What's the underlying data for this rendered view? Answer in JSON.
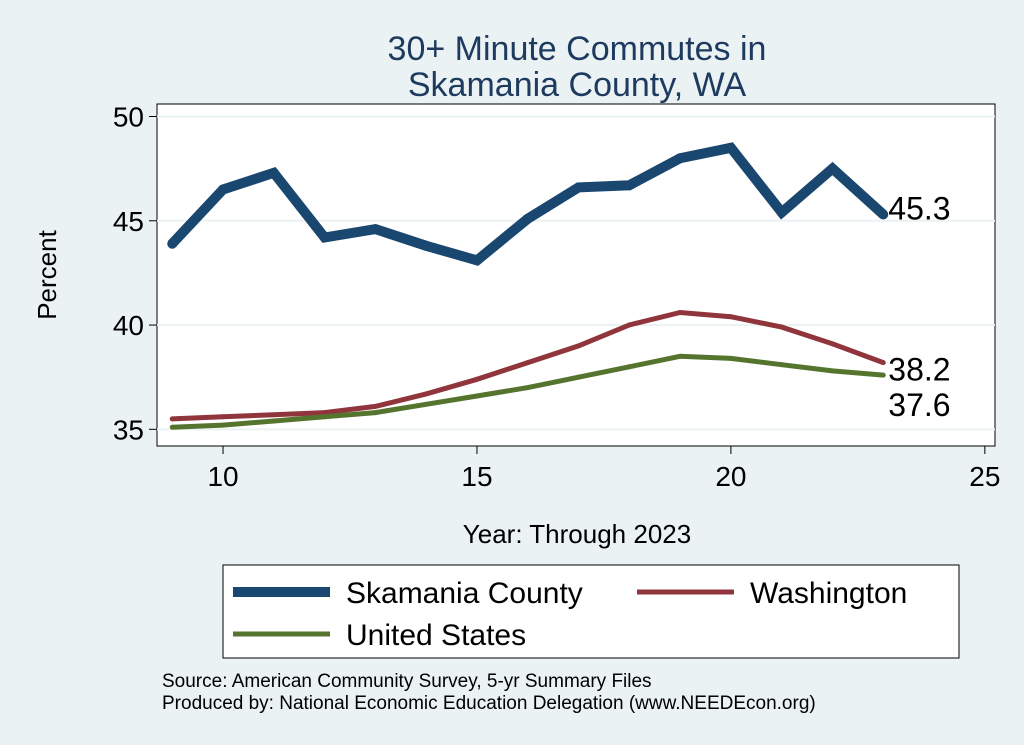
{
  "chart_data": {
    "type": "line",
    "title": [
      "30+ Minute Commutes in",
      "Skamania County, WA"
    ],
    "xlabel": "Year: Through 2023",
    "ylabel": "Percent",
    "xlim": [
      8.7,
      25.2
    ],
    "ylim": [
      34.2,
      50.6
    ],
    "xticks": [
      10,
      15,
      20,
      25
    ],
    "yticks": [
      35,
      40,
      45,
      50
    ],
    "grid": true,
    "x": [
      9,
      10,
      11,
      12,
      13,
      14,
      15,
      16,
      17,
      18,
      19,
      20,
      21,
      22,
      23
    ],
    "series": [
      {
        "name": "Skamania County",
        "color": "#1a476f",
        "values": [
          43.9,
          46.5,
          47.3,
          44.2,
          44.6,
          43.8,
          43.1,
          45.1,
          46.6,
          46.7,
          48.0,
          48.5,
          45.4,
          47.5,
          45.3
        ],
        "end_label": "45.3"
      },
      {
        "name": "Washington",
        "color": "#90353b",
        "values": [
          35.5,
          35.6,
          35.7,
          35.8,
          36.1,
          36.7,
          37.4,
          38.2,
          39.0,
          40.0,
          40.6,
          40.4,
          39.9,
          39.1,
          38.2
        ],
        "end_label": "38.2"
      },
      {
        "name": "United States",
        "color": "#55752f",
        "values": [
          35.1,
          35.2,
          35.4,
          35.6,
          35.8,
          36.2,
          36.6,
          37.0,
          37.5,
          38.0,
          38.5,
          38.4,
          38.1,
          37.8,
          37.6
        ],
        "end_label": "37.6"
      }
    ],
    "source_lines": [
      "Source: American Community Survey, 5-yr Summary Files",
      "Produced by: National Economic Education Delegation (www.NEEDEcon.org)"
    ]
  }
}
